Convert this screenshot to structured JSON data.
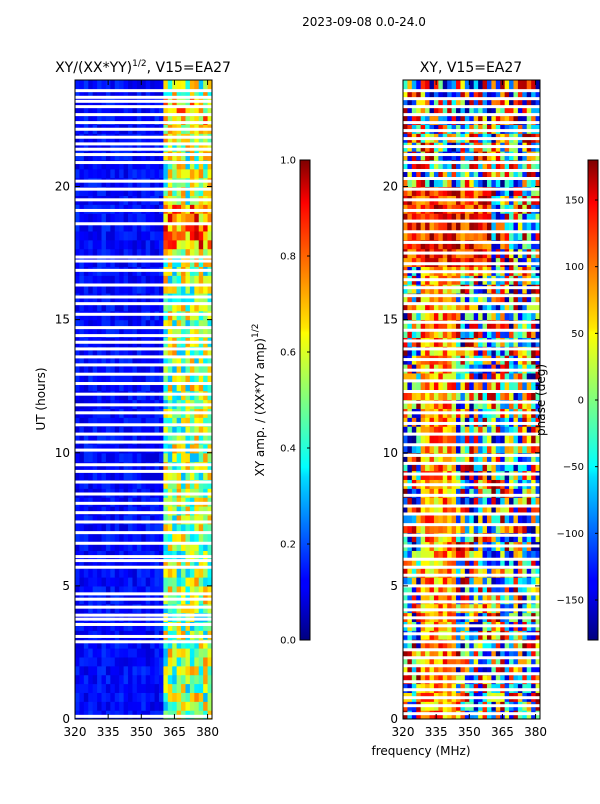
{
  "figure_title": "2023-09-08 0.0-24.0",
  "chart_data": [
    {
      "type": "heatmap",
      "title": "XY/(XX*YY)",
      "title_exponent": "1/2",
      "title_suffix": ", V15=EA27",
      "xlabel": "frequency (MHz)",
      "ylabel": "UT (hours)",
      "xlim": [
        320,
        382
      ],
      "ylim": [
        0,
        24
      ],
      "x_ticks": [
        "320",
        "335",
        "350",
        "365",
        "380"
      ],
      "x_tick_values": [
        320,
        335,
        350,
        365,
        380
      ],
      "y_ticks": [
        "0",
        "5",
        "10",
        "15",
        "20"
      ],
      "y_tick_values": [
        0,
        5,
        10,
        15,
        20
      ],
      "colorbar": {
        "label": "XY amp. / (XX*YY amp)",
        "label_exponent": "1/2",
        "range": [
          0.0,
          1.0
        ],
        "ticks": [
          "0.0",
          "0.2",
          "0.4",
          "0.6",
          "0.8",
          "1.0"
        ],
        "tick_values": [
          0.0,
          0.2,
          0.4,
          0.6,
          0.8,
          1.0
        ],
        "colormap": "jet"
      },
      "flagged_hours": [
        0.1,
        2.9,
        3.1,
        3.55,
        3.75,
        3.9,
        4.2,
        4.5,
        4.7,
        5.7,
        5.95,
        6.1,
        6.6,
        7.0,
        7.4,
        7.75,
        8.1,
        8.45,
        8.9,
        9.3,
        9.55,
        10.1,
        10.4,
        10.7,
        11.05,
        11.5,
        11.8,
        12.2,
        12.6,
        12.95,
        13.3,
        13.6,
        13.9,
        14.15,
        14.4,
        14.7,
        15.2,
        15.6,
        15.85,
        16.3,
        16.85,
        17.2,
        17.35,
        18.6,
        19.1,
        19.5,
        19.9,
        20.2,
        20.9,
        21.2,
        21.4,
        21.6,
        21.85,
        22.15,
        22.4,
        22.7,
        23.0,
        23.2,
        23.35,
        23.6
      ]
    },
    {
      "type": "heatmap",
      "title": "XY, V15=EA27",
      "xlabel": "frequency (MHz)",
      "ylabel": "",
      "xlim": [
        320,
        382
      ],
      "ylim": [
        0,
        24
      ],
      "x_ticks": [
        "320",
        "335",
        "350",
        "365",
        "380"
      ],
      "x_tick_values": [
        320,
        335,
        350,
        365,
        380
      ],
      "y_ticks": [
        "0",
        "5",
        "10",
        "15",
        "20"
      ],
      "y_tick_values": [
        0,
        5,
        10,
        15,
        20
      ],
      "colorbar": {
        "label": "phase (deg)",
        "range": [
          -180,
          180
        ],
        "ticks": [
          "−150",
          "−100",
          "−50",
          "0",
          "50",
          "100",
          "150"
        ],
        "tick_values": [
          -150,
          -100,
          -50,
          0,
          50,
          100,
          150
        ],
        "colormap": "jet"
      },
      "flagged_hours": [
        0.2,
        0.5,
        0.8,
        1.1,
        1.4,
        1.7,
        2.0,
        2.3,
        2.6,
        2.9,
        3.2,
        3.5,
        3.8,
        4.1,
        4.4,
        4.7,
        5.0,
        5.4,
        5.7,
        6.0,
        6.5,
        6.9,
        7.3,
        7.7,
        8.0,
        8.4,
        8.8,
        9.2,
        9.6,
        9.9,
        10.3,
        10.7,
        11.1,
        11.5,
        11.9,
        12.3,
        12.7,
        13.1,
        13.5,
        13.9,
        14.2,
        14.6,
        14.9,
        15.3,
        15.6,
        15.9,
        16.2,
        16.5,
        16.8,
        17.1,
        17.5,
        17.9,
        18.3,
        18.7,
        19.1,
        19.5,
        19.9,
        20.3,
        20.6,
        20.9,
        21.2,
        21.5,
        21.8,
        22.1,
        22.4,
        22.7,
        23.0,
        23.3,
        23.6
      ]
    }
  ]
}
